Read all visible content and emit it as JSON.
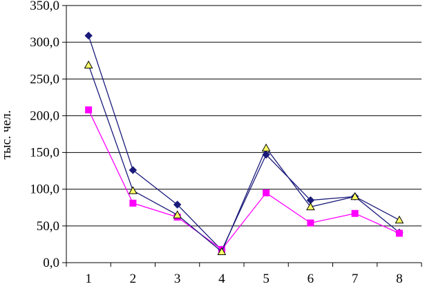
{
  "chart_data": {
    "type": "line",
    "title": "",
    "xlabel": "",
    "ylabel": "тыс. чел.",
    "ylim": [
      0,
      350
    ],
    "y_ticks": [
      "0,0",
      "50,0",
      "100,0",
      "150,0",
      "200,0",
      "250,0",
      "300,0",
      "350,0"
    ],
    "y_tick_values": [
      0,
      50,
      100,
      150,
      200,
      250,
      300,
      350
    ],
    "categories": [
      "1",
      "2",
      "3",
      "4",
      "5",
      "6",
      "7",
      "8"
    ],
    "grid": true,
    "legend": "none",
    "series": [
      {
        "values": [
          309,
          126,
          79,
          17,
          147,
          85,
          90,
          41
        ],
        "color": "#1a1a7a",
        "marker": "diamond"
      },
      {
        "values": [
          208,
          81,
          62,
          18,
          95,
          54,
          67,
          40
        ],
        "color": "#ff00ff",
        "marker": "square"
      },
      {
        "values": [
          269,
          98,
          65,
          15,
          156,
          76,
          90,
          58
        ],
        "color": "#1a1a7a",
        "marker": "triangle",
        "marker_fill": "#ffff66"
      }
    ]
  }
}
